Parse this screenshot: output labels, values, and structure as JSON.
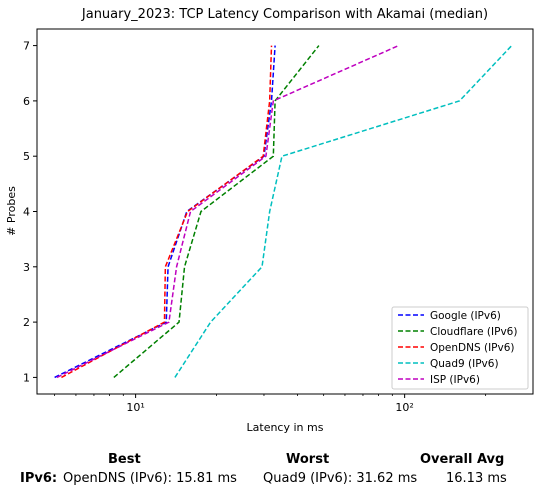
{
  "chart_data": {
    "type": "line",
    "title": "January_2023: TCP Latency Comparison with Akamai (median)",
    "xlabel": "Latency in ms",
    "ylabel": "# Probes",
    "xscale": "log",
    "xlim": [
      4.3,
      300
    ],
    "ylim": [
      0.7,
      7.3
    ],
    "xticks": [
      10,
      100
    ],
    "xtick_labels": [
      "10¹",
      "10²"
    ],
    "yticks": [
      1,
      2,
      3,
      4,
      5,
      6,
      7
    ],
    "grid": false,
    "legend": "bottom-right",
    "series": [
      {
        "name": "Google (IPv6)",
        "color": "#0000ff",
        "points": [
          [
            5.0,
            1
          ],
          [
            13.0,
            2
          ],
          [
            13.2,
            3
          ],
          [
            15.5,
            4
          ],
          [
            30.0,
            5
          ],
          [
            32.0,
            6
          ],
          [
            33.0,
            7
          ]
        ]
      },
      {
        "name": "Cloudflare (IPv6)",
        "color": "#008000",
        "points": [
          [
            8.3,
            1
          ],
          [
            14.5,
            2
          ],
          [
            15.2,
            3
          ],
          [
            17.5,
            4
          ],
          [
            32.5,
            5
          ],
          [
            33.0,
            6
          ],
          [
            48.0,
            7
          ]
        ]
      },
      {
        "name": "OpenDNS (IPv6)",
        "color": "#ff0000",
        "points": [
          [
            5.3,
            1
          ],
          [
            12.8,
            2
          ],
          [
            12.9,
            3
          ],
          [
            15.6,
            4
          ],
          [
            29.8,
            5
          ],
          [
            31.5,
            6
          ],
          [
            32.0,
            7
          ]
        ]
      },
      {
        "name": "Quad9 (IPv6)",
        "color": "#00bfbf",
        "points": [
          [
            14.0,
            1
          ],
          [
            19.0,
            2
          ],
          [
            29.5,
            3
          ],
          [
            31.5,
            4
          ],
          [
            35.0,
            5
          ],
          [
            160.0,
            6
          ],
          [
            250.0,
            7
          ]
        ]
      },
      {
        "name": "ISP (IPv6)",
        "color": "#bf00bf",
        "points": [
          [
            5.1,
            1
          ],
          [
            13.3,
            2
          ],
          [
            14.2,
            3
          ],
          [
            16.0,
            4
          ],
          [
            30.5,
            5
          ],
          [
            32.5,
            6
          ],
          [
            95.0,
            7
          ]
        ]
      }
    ]
  },
  "summary": {
    "best_header": "Best",
    "worst_header": "Worst",
    "avg_header": "Overall Avg",
    "row_label": "IPv6:",
    "best_value": "OpenDNS (IPv6): 15.81 ms",
    "worst_value": "Quad9 (IPv6): 31.62 ms",
    "avg_value": "16.13 ms"
  }
}
